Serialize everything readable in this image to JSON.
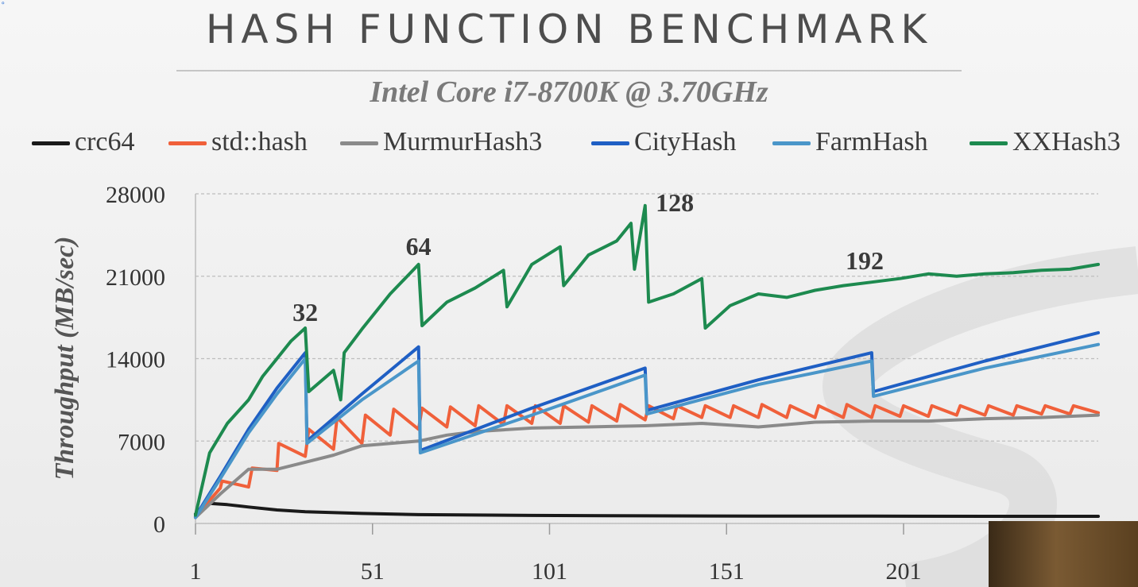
{
  "chart_data": {
    "type": "line",
    "title": "HASH FUNCTION BENCHMARK",
    "subtitle": "Intel Core i7-8700K @ 3.70GHz",
    "ylabel": "Throughput (MB/sec)",
    "xlabel": "",
    "ylim": [
      0,
      28000
    ],
    "xlim": [
      1,
      256
    ],
    "yticks": [
      "0",
      "7000",
      "14000",
      "21000",
      "28000"
    ],
    "xticks": [
      "1",
      "51",
      "101",
      "151",
      "201"
    ],
    "grid": "horizontal-dashed",
    "legend_position": "top",
    "annotations": [
      {
        "text": "32",
        "x": 32,
        "y": 17200
      },
      {
        "text": "64",
        "x": 64,
        "y": 22800
      },
      {
        "text": "128",
        "x": 131,
        "y": 26500
      },
      {
        "text": "192",
        "x": 190,
        "y": 21600
      }
    ],
    "series": [
      {
        "name": "crc64",
        "color": "#1a1a1a",
        "x": [
          1,
          5,
          10,
          16,
          24,
          32,
          48,
          64,
          96,
          128,
          160,
          192,
          224,
          256
        ],
        "y": [
          800,
          1700,
          1600,
          1400,
          1150,
          1000,
          850,
          750,
          680,
          650,
          630,
          620,
          610,
          610
        ]
      },
      {
        "name": "std::hash",
        "color": "#f0603a",
        "x": [
          1,
          8,
          8.5,
          16,
          17,
          24,
          24.5,
          32,
          33,
          40,
          41,
          48,
          49,
          56,
          57,
          64,
          65,
          72,
          73,
          80,
          81,
          88,
          89,
          96,
          97,
          104,
          105,
          112,
          113,
          120,
          121,
          128,
          129,
          136,
          137,
          144,
          145,
          152,
          153,
          160,
          161,
          168,
          169,
          176,
          177,
          184,
          185,
          192,
          193,
          200,
          201,
          208,
          209,
          216,
          217,
          224,
          225,
          232,
          233,
          240,
          241,
          248,
          249,
          256
        ],
        "y": [
          600,
          3000,
          3600,
          3100,
          4700,
          4500,
          6800,
          5700,
          8000,
          6300,
          9000,
          6800,
          9200,
          7500,
          9700,
          8000,
          9800,
          8200,
          9900,
          8300,
          10000,
          8400,
          10000,
          8500,
          10000,
          8500,
          10000,
          8600,
          10000,
          8700,
          10100,
          8800,
          10000,
          8900,
          10000,
          9000,
          10000,
          9000,
          10000,
          9000,
          10100,
          9000,
          10000,
          9000,
          10000,
          9000,
          10100,
          9000,
          10000,
          9100,
          10000,
          9100,
          10000,
          9200,
          10000,
          9200,
          10000,
          9200,
          10000,
          9300,
          10000,
          9300,
          10000,
          9400
        ]
      },
      {
        "name": "MurmurHash3",
        "color": "#8a8a8a",
        "x": [
          1,
          8,
          16,
          24,
          32,
          40,
          48,
          56,
          64,
          72,
          80,
          96,
          112,
          128,
          144,
          160,
          176,
          192,
          208,
          224,
          240,
          256
        ],
        "y": [
          500,
          2500,
          4600,
          4600,
          5200,
          5800,
          6600,
          6800,
          7000,
          7500,
          7800,
          8100,
          8200,
          8300,
          8500,
          8200,
          8600,
          8700,
          8700,
          8900,
          9000,
          9200
        ]
      },
      {
        "name": "CityHash",
        "color": "#1f5fc4",
        "x": [
          1,
          8,
          16,
          24,
          32,
          32.5,
          48,
          64,
          64.5,
          96,
          128,
          128.5,
          160,
          192,
          192.5,
          224,
          256
        ],
        "y": [
          600,
          4000,
          8000,
          11500,
          14500,
          7000,
          11000,
          15000,
          6200,
          9800,
          13200,
          9600,
          12200,
          14500,
          11200,
          13800,
          16200
        ]
      },
      {
        "name": "FarmHash",
        "color": "#4a96c9",
        "x": [
          1,
          8,
          16,
          24,
          32,
          32.5,
          48,
          64,
          64.5,
          96,
          128,
          128.5,
          160,
          192,
          192.5,
          224,
          256
        ],
        "y": [
          500,
          3800,
          7700,
          11000,
          14000,
          6800,
          10500,
          13800,
          6000,
          9200,
          12600,
          9300,
          11800,
          13800,
          10800,
          13200,
          15200
        ]
      },
      {
        "name": "XXHash3",
        "color": "#1d8a4f",
        "x": [
          1,
          5,
          10,
          16,
          20,
          24,
          28,
          32,
          33,
          40,
          42,
          43,
          48,
          56,
          64,
          65,
          72,
          80,
          88,
          89,
          96,
          104,
          105,
          112,
          120,
          124,
          125,
          128,
          129,
          136,
          144,
          145,
          152,
          160,
          168,
          176,
          184,
          192,
          200,
          208,
          216,
          224,
          232,
          240,
          248,
          252,
          256
        ],
        "y": [
          700,
          6000,
          8500,
          10500,
          12500,
          14000,
          15500,
          16600,
          11200,
          13000,
          10500,
          14500,
          16500,
          19500,
          22000,
          16800,
          18800,
          20000,
          21500,
          18400,
          22000,
          23500,
          20200,
          22800,
          24000,
          25500,
          21600,
          27000,
          18800,
          19500,
          20800,
          16600,
          18500,
          19500,
          19200,
          19800,
          20200,
          20500,
          20800,
          21200,
          21000,
          21200,
          21300,
          21500,
          21600,
          21800,
          22000
        ]
      }
    ]
  }
}
